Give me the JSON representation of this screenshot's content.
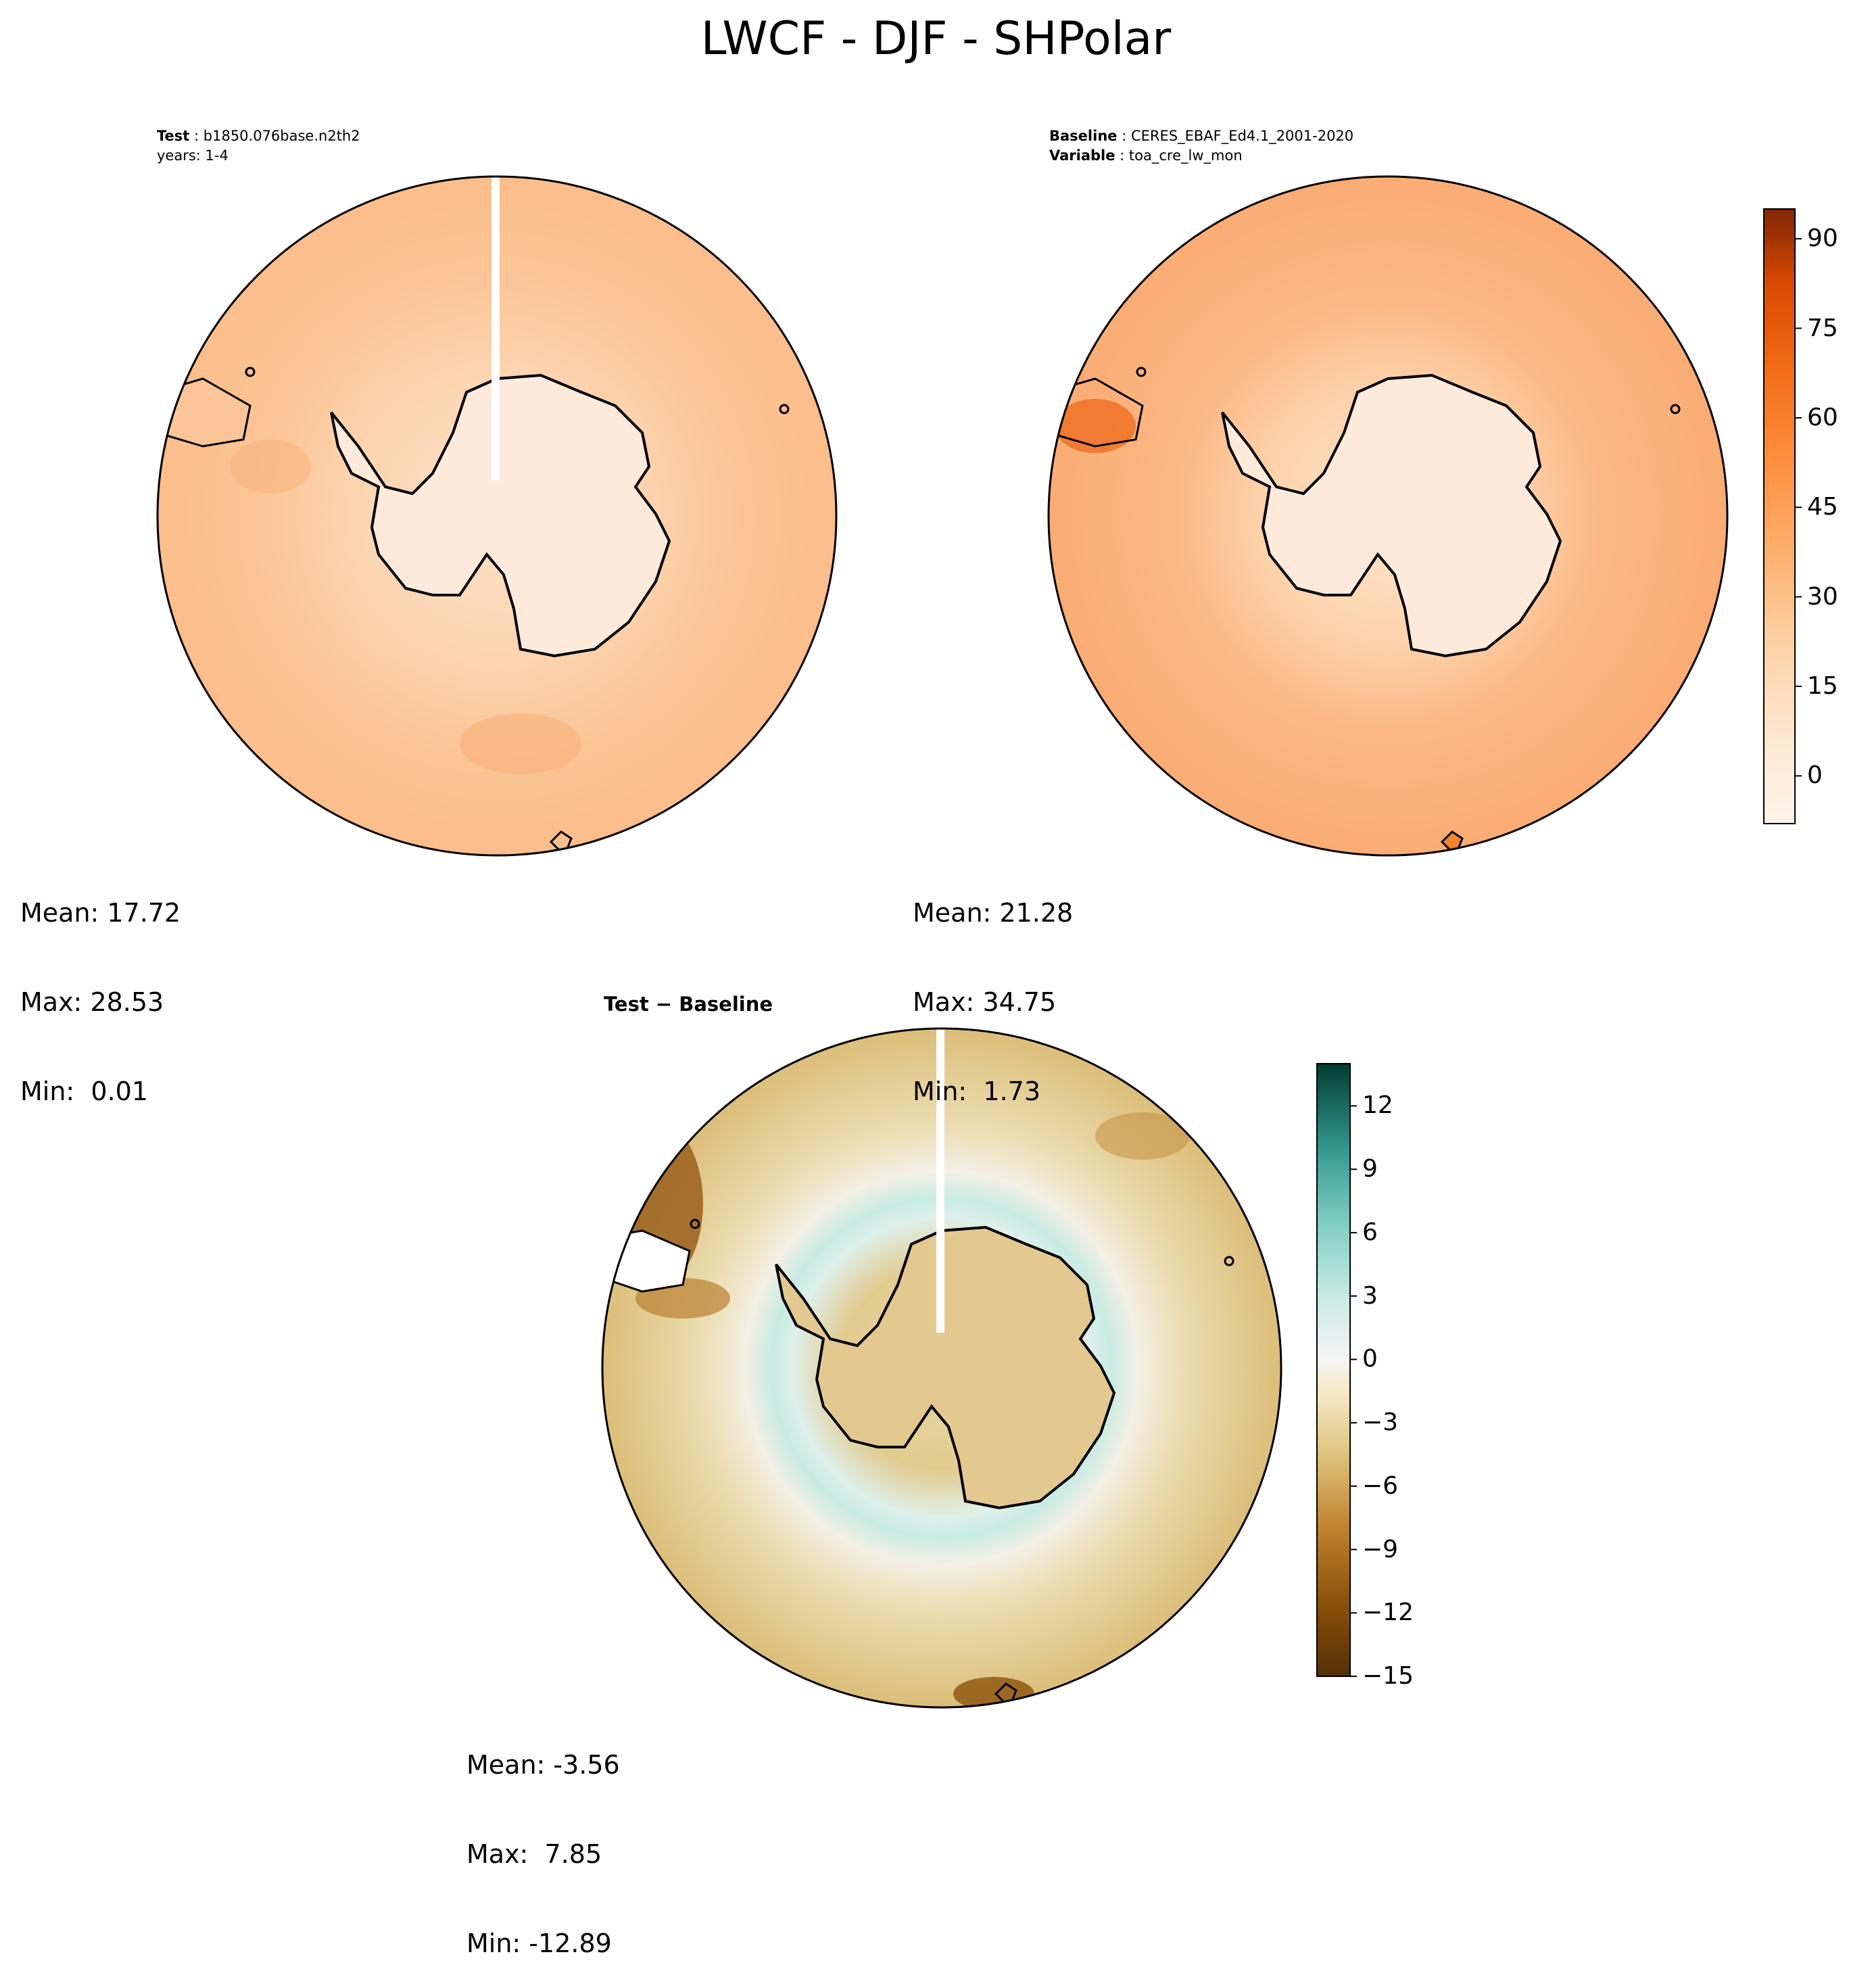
{
  "figure": {
    "title": "LWCF - DJF - SHPolar"
  },
  "panels": {
    "test": {
      "label_key": "Test",
      "label_value": "b1850.076base.n2th2",
      "years_line": "years: 1-4",
      "mean": "Mean: 17.72",
      "max": "Max: 28.53",
      "min": "Min:  0.01"
    },
    "baseline": {
      "label_key": "Baseline",
      "label_value": "CERES_EBAF_Ed4.1_2001-2020",
      "var_key": "Variable",
      "var_value": "toa_cre_lw_mon",
      "mean": "Mean: 21.28",
      "max": "Max: 34.75",
      "min": "Min:  1.73"
    },
    "diff": {
      "title": "Test − Baseline",
      "mean": "Mean: -3.56",
      "max": "Max:  7.85",
      "min": "Min: -12.89"
    }
  },
  "colors": {
    "ocean_test": "#fbbf8e",
    "ocean_base": "#fab07a",
    "inner_test": "#fcd5b2",
    "inner_base": "#fdd3ae",
    "land_test": "#feeedf",
    "land_base": "#feeadb",
    "diff_bg": "#dfc27d",
    "diff_ring": "#f5f5f5",
    "diff_teal": "#bfe6de",
    "coast": "#000000"
  },
  "chart_data": [
    {
      "type": "heatmap",
      "panel": "test",
      "projection": "south polar stereographic",
      "title": "Test : b1850.076base.n2th2",
      "subtitle": "years: 1-4",
      "stats": {
        "mean": 17.72,
        "max": 28.53,
        "min": 0.01
      },
      "colorbar": "shared with baseline"
    },
    {
      "type": "heatmap",
      "panel": "baseline",
      "projection": "south polar stereographic",
      "title": "Baseline : CERES_EBAF_Ed4.1_2001-2020",
      "subtitle": "Variable : toa_cre_lw_mon",
      "stats": {
        "mean": 21.28,
        "max": 34.75,
        "min": 1.73
      },
      "colorbar": {
        "cmap": "Oranges",
        "range": [
          -8,
          95
        ],
        "ticks": [
          0,
          15,
          30,
          45,
          60,
          75,
          90
        ],
        "tick_labels": [
          "0",
          "15",
          "30",
          "45",
          "60",
          "75",
          "90"
        ]
      }
    },
    {
      "type": "heatmap",
      "panel": "difference",
      "projection": "south polar stereographic",
      "title": "Test − Baseline",
      "stats": {
        "mean": -3.56,
        "max": 7.85,
        "min": -12.89
      },
      "colorbar": {
        "cmap": "BrBG",
        "range": [
          -15,
          14
        ],
        "ticks": [
          -15,
          -12,
          -9,
          -6,
          -3,
          0,
          3,
          6,
          9,
          12
        ],
        "tick_labels": [
          "−15",
          "−12",
          "−9",
          "−6",
          "−3",
          "0",
          "3",
          "6",
          "9",
          "12"
        ]
      }
    }
  ]
}
